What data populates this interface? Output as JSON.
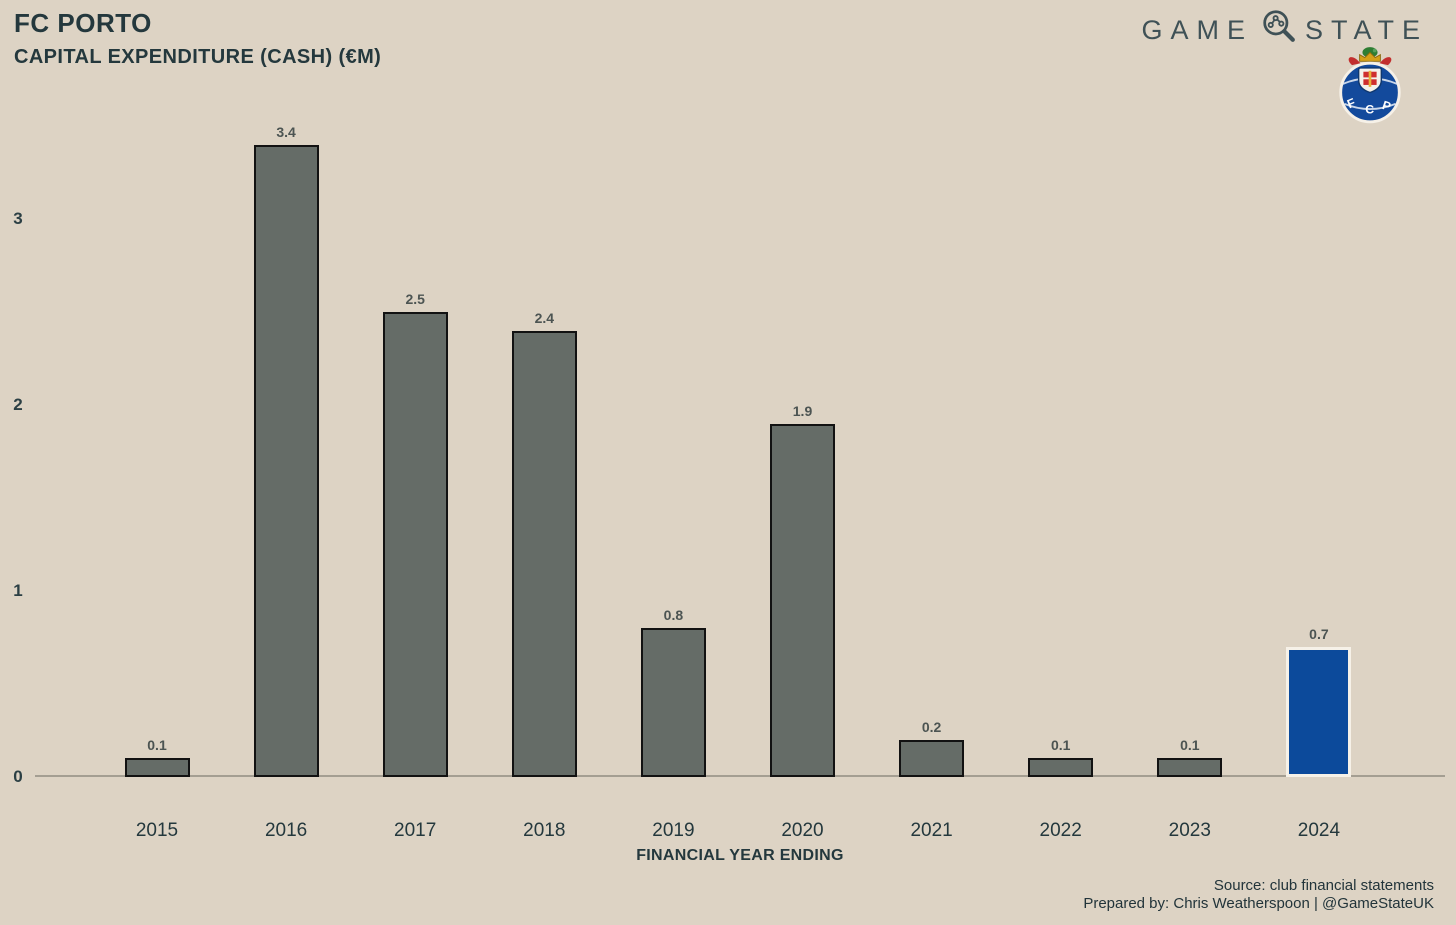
{
  "header": {
    "title": "FC PORTO",
    "subtitle": "CAPITAL EXPENDITURE (CASH) (€M)"
  },
  "brand": {
    "word_left": "GAME",
    "word_right": "STATE",
    "icon_name": "magnifier-network-icon",
    "badge_name": "FC Porto crest",
    "badge_letters": [
      "F",
      "C",
      "P"
    ]
  },
  "chart_data": {
    "type": "bar",
    "title": "FC PORTO",
    "subtitle": "CAPITAL EXPENDITURE (CASH) (€M)",
    "categories": [
      "2015",
      "2016",
      "2017",
      "2018",
      "2019",
      "2020",
      "2021",
      "2022",
      "2023",
      "2024"
    ],
    "values": [
      0.1,
      3.4,
      2.5,
      2.4,
      0.8,
      1.9,
      0.2,
      0.1,
      0.1,
      0.7
    ],
    "bar_labels": [
      "0.1",
      "3.4",
      "2.5",
      "2.4",
      "0.8",
      "1.9",
      "0.2",
      "0.1",
      "0.1",
      "0.7"
    ],
    "xlabel": "FINANCIAL YEAR ENDING",
    "ylabel": "",
    "y_ticks": [
      0,
      1,
      2,
      3
    ],
    "ylim": [
      0,
      3.7
    ],
    "grid": false,
    "legend": "none",
    "highlight_index": 9,
    "colors": {
      "bar": "#656c67",
      "bar_outline": "#121212",
      "highlight": "#0c4a9b",
      "highlight_outline": "#f6f1e8"
    }
  },
  "footer": {
    "source": "Source: club financial statements",
    "prepared": "Prepared by: Chris Weatherspoon | @GameStateUK"
  },
  "theme": {
    "background": "#ddd3c4",
    "text_dark": "#24383d",
    "text_value": "#4c5452",
    "axis_line": "#a49e92",
    "brand_color": "#3f5156"
  }
}
